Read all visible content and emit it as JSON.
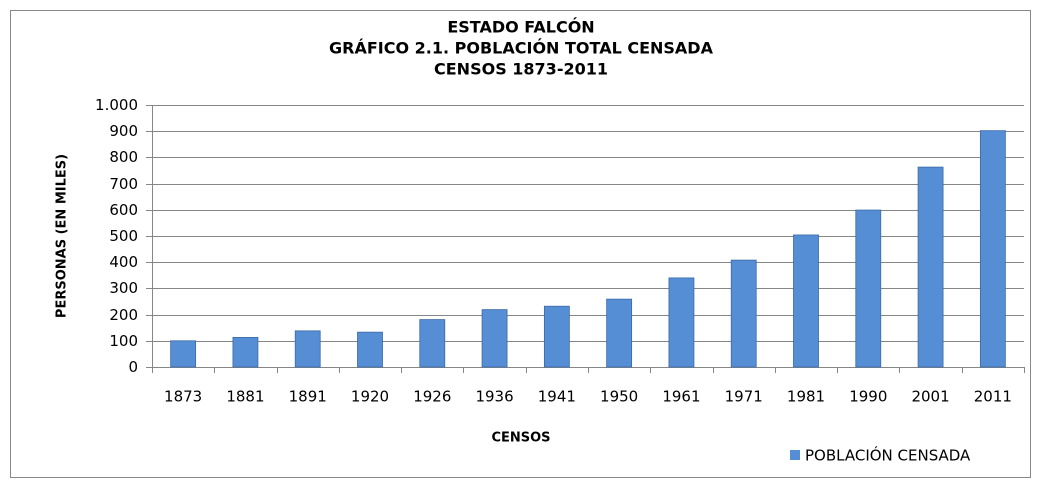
{
  "chart_data": {
    "type": "bar",
    "title": [
      "ESTADO FALCÓN",
      "GRÁFICO 2.1. POBLACIÓN TOTAL CENSADA",
      "CENSOS 1873-2011"
    ],
    "xlabel": "CENSOS",
    "ylabel": "PERSONAS (EN MILES)",
    "categories": [
      "1873",
      "1881",
      "1891",
      "1920",
      "1926",
      "1936",
      "1941",
      "1950",
      "1961",
      "1971",
      "1981",
      "1990",
      "2001",
      "2011"
    ],
    "series": [
      {
        "name": "POBLACIÓN CENSADA",
        "color": "#558ed5",
        "values": [
          100,
          113,
          138,
          133,
          181,
          219,
          232,
          259,
          340,
          408,
          504,
          599,
          763,
          902
        ]
      }
    ],
    "ylim": [
      0,
      1000
    ],
    "yticks": [
      0,
      100,
      200,
      300,
      400,
      500,
      600,
      700,
      800,
      900,
      {
        "value": 1000,
        "label": "1.000"
      }
    ],
    "grid": true,
    "legend": "bottom-right"
  }
}
